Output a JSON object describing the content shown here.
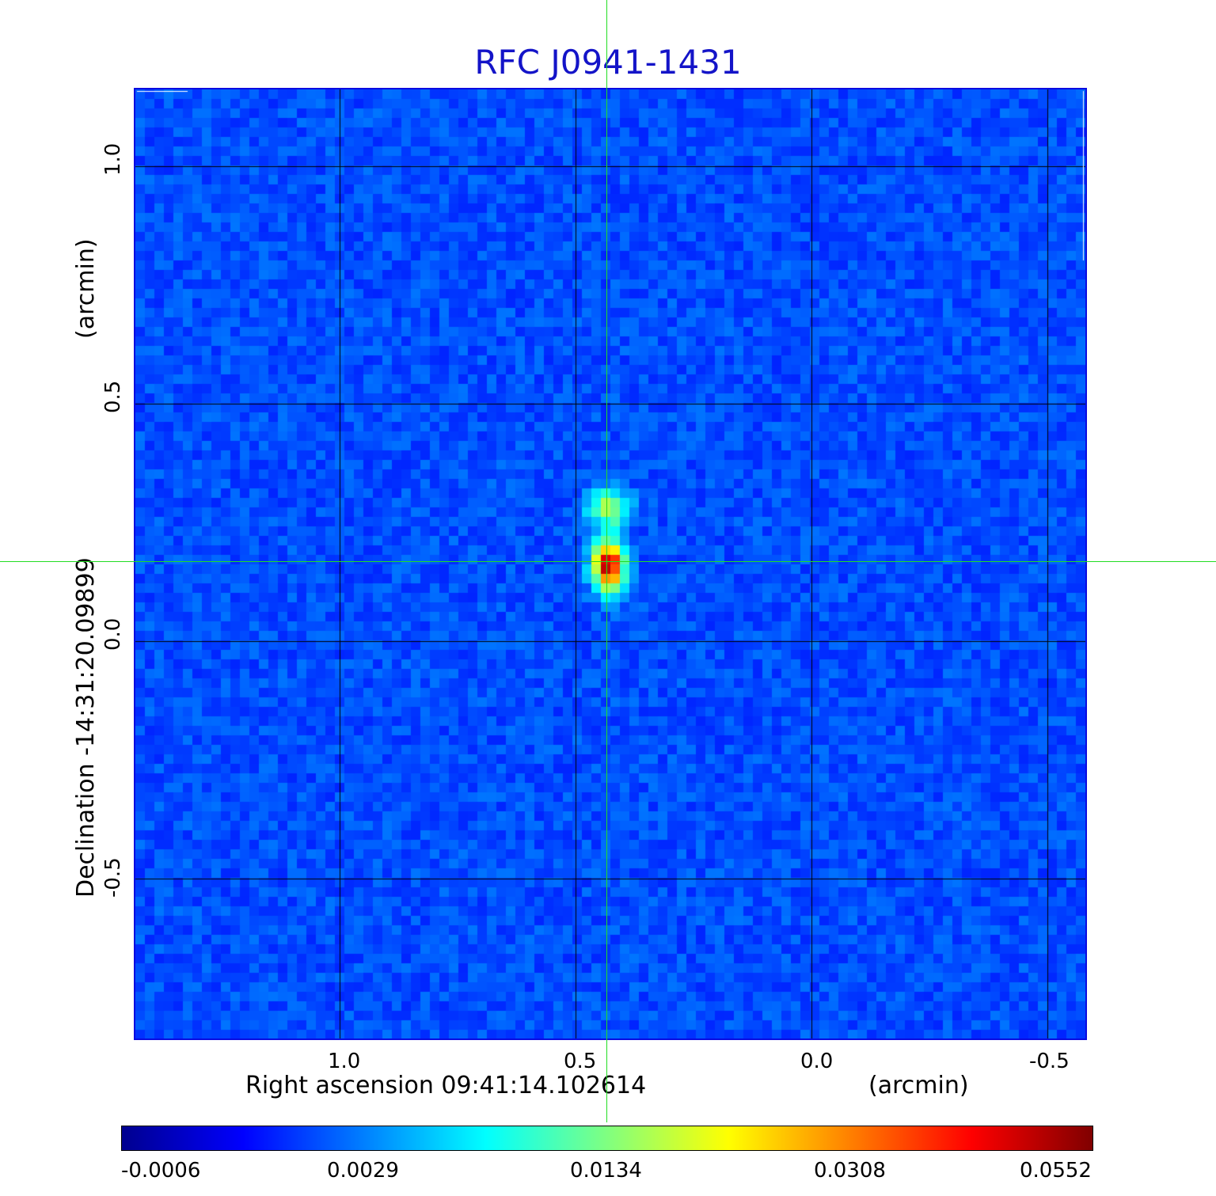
{
  "title": "RFC J0941-1431",
  "x_axis": {
    "label": "Right ascension  09:41:14.102614",
    "unit": "(arcmin)",
    "ticks": [
      "1.0",
      "0.5",
      "0.0",
      "-0.5"
    ],
    "tick_values": [
      1.0,
      0.5,
      0.0,
      -0.5
    ]
  },
  "y_axis": {
    "label": "Declination  -14:31:20.09899",
    "unit": "(arcmin)",
    "ticks": [
      "1.0",
      "0.5",
      "0.0",
      "-0.5"
    ],
    "tick_values": [
      1.0,
      0.5,
      0.0,
      -0.5
    ]
  },
  "colorbar": {
    "labels": [
      "-0.0006",
      "0.0029",
      "0.0134",
      "0.0308",
      "0.0552"
    ],
    "colormap": "jet",
    "colors": [
      "#00008f",
      "#0000ff",
      "#0080ff",
      "#00ffff",
      "#80ff80",
      "#ffff00",
      "#ff8000",
      "#ff0000",
      "#800000"
    ]
  },
  "image": {
    "description_colors": {
      "background": "#1a3cf0",
      "grid": "#000000",
      "crosshair": "#22dd22"
    },
    "source_position_arcmin": {
      "ra_offset": 0.43,
      "dec_offset": 0.16
    }
  }
}
